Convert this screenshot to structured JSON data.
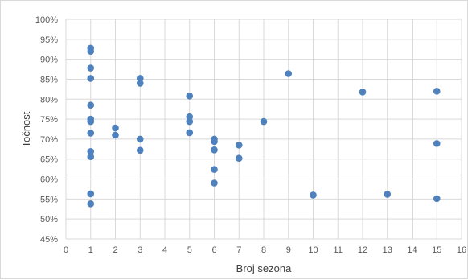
{
  "chart_data": {
    "type": "scatter",
    "title": "",
    "xlabel": "Broj sezona",
    "ylabel": "Točnost",
    "xlim": [
      0,
      16
    ],
    "ylim": [
      0.45,
      1.0
    ],
    "x_ticks": [
      "0",
      "1",
      "2",
      "3",
      "4",
      "5",
      "6",
      "7",
      "8",
      "9",
      "10",
      "11",
      "12",
      "13",
      "14",
      "15",
      "16"
    ],
    "y_ticks": [
      "45%",
      "50%",
      "55%",
      "60%",
      "65%",
      "70%",
      "75%",
      "80%",
      "85%",
      "90%",
      "95%",
      "100%"
    ],
    "grid": true,
    "legend": "none",
    "marker_color": "#4f81bd",
    "points": [
      {
        "x": 1,
        "y": 0.928
      },
      {
        "x": 1,
        "y": 0.92
      },
      {
        "x": 1,
        "y": 0.878
      },
      {
        "x": 1,
        "y": 0.852
      },
      {
        "x": 1,
        "y": 0.785
      },
      {
        "x": 1,
        "y": 0.75
      },
      {
        "x": 1,
        "y": 0.744
      },
      {
        "x": 1,
        "y": 0.715
      },
      {
        "x": 1,
        "y": 0.669
      },
      {
        "x": 1,
        "y": 0.656
      },
      {
        "x": 1,
        "y": 0.563
      },
      {
        "x": 1,
        "y": 0.538
      },
      {
        "x": 2,
        "y": 0.728
      },
      {
        "x": 2,
        "y": 0.71
      },
      {
        "x": 3,
        "y": 0.852
      },
      {
        "x": 3,
        "y": 0.84
      },
      {
        "x": 3,
        "y": 0.7
      },
      {
        "x": 3,
        "y": 0.672
      },
      {
        "x": 5,
        "y": 0.808
      },
      {
        "x": 5,
        "y": 0.756
      },
      {
        "x": 5,
        "y": 0.744
      },
      {
        "x": 5,
        "y": 0.716
      },
      {
        "x": 6,
        "y": 0.7
      },
      {
        "x": 6,
        "y": 0.694
      },
      {
        "x": 6,
        "y": 0.673
      },
      {
        "x": 6,
        "y": 0.624
      },
      {
        "x": 6,
        "y": 0.59
      },
      {
        "x": 7,
        "y": 0.685
      },
      {
        "x": 7,
        "y": 0.652
      },
      {
        "x": 8,
        "y": 0.744
      },
      {
        "x": 9,
        "y": 0.864
      },
      {
        "x": 10,
        "y": 0.56
      },
      {
        "x": 12,
        "y": 0.818
      },
      {
        "x": 13,
        "y": 0.562
      },
      {
        "x": 15,
        "y": 0.82
      },
      {
        "x": 15,
        "y": 0.689
      },
      {
        "x": 15,
        "y": 0.551
      }
    ]
  }
}
